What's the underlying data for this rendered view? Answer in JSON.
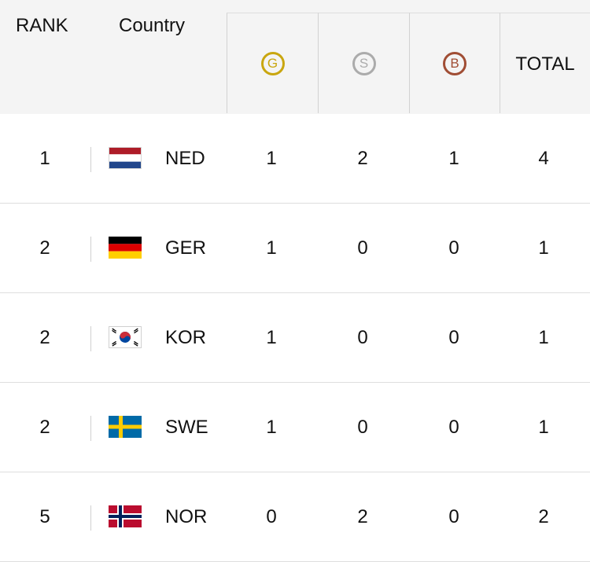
{
  "header": {
    "rank": "RANK",
    "country": "Country",
    "gold": "G",
    "silver": "S",
    "bronze": "B",
    "total": "TOTAL"
  },
  "colors": {
    "gold": "#c9a60f",
    "silver": "#ababab",
    "bronze": "#a04d34"
  },
  "rows": [
    {
      "rank": "1",
      "code": "NED",
      "flag": "netherlands-flag-icon",
      "gold": "1",
      "silver": "2",
      "bronze": "1",
      "total": "4"
    },
    {
      "rank": "2",
      "code": "GER",
      "flag": "germany-flag-icon",
      "gold": "1",
      "silver": "0",
      "bronze": "0",
      "total": "1"
    },
    {
      "rank": "2",
      "code": "KOR",
      "flag": "south-korea-flag-icon",
      "gold": "1",
      "silver": "0",
      "bronze": "0",
      "total": "1"
    },
    {
      "rank": "2",
      "code": "SWE",
      "flag": "sweden-flag-icon",
      "gold": "1",
      "silver": "0",
      "bronze": "0",
      "total": "1"
    },
    {
      "rank": "5",
      "code": "NOR",
      "flag": "norway-flag-icon",
      "gold": "0",
      "silver": "2",
      "bronze": "0",
      "total": "2"
    }
  ]
}
